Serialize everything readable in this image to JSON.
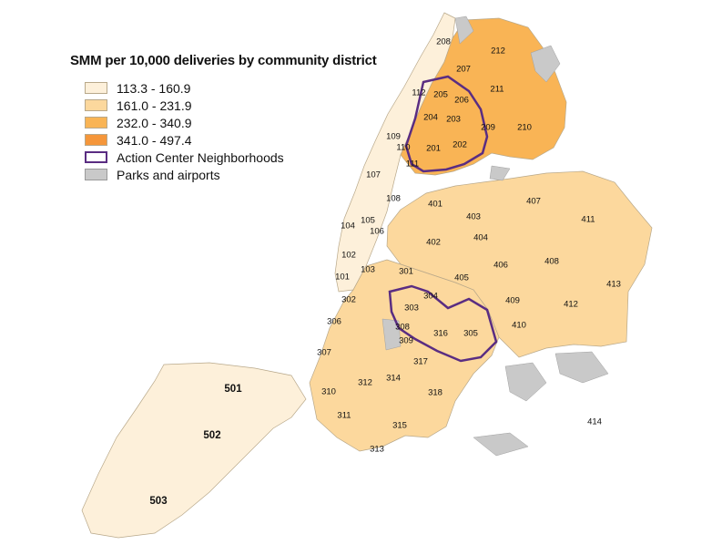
{
  "legend": {
    "title": "SMM per 10,000 deliveries by community district",
    "classes": [
      {
        "label": "113.3 - 160.9",
        "color": "#fdf0da"
      },
      {
        "label": "161.0 - 231.9",
        "color": "#fcd89d"
      },
      {
        "label": "232.0 - 340.9",
        "color": "#f9b455"
      },
      {
        "label": "341.0 - 497.4",
        "color": "#f5963a"
      }
    ],
    "action_center": {
      "label": "Action Center Neighborhoods",
      "color": "#5a2d82"
    },
    "parks": {
      "label": "Parks and airports",
      "color": "#c9c9c9"
    }
  },
  "districts": [
    {
      "id": "101",
      "class": 1
    },
    {
      "id": "102",
      "class": 1
    },
    {
      "id": "103",
      "class": 1
    },
    {
      "id": "104",
      "class": 1
    },
    {
      "id": "105",
      "class": 2
    },
    {
      "id": "106",
      "class": 1
    },
    {
      "id": "107",
      "class": 1
    },
    {
      "id": "108",
      "class": 1
    },
    {
      "id": "109",
      "class": 2
    },
    {
      "id": "110",
      "class": 3
    },
    {
      "id": "111",
      "class": 3
    },
    {
      "id": "112",
      "class": 2
    },
    {
      "id": "201",
      "class": 3
    },
    {
      "id": "202",
      "class": 3
    },
    {
      "id": "203",
      "class": 3
    },
    {
      "id": "204",
      "class": 3
    },
    {
      "id": "205",
      "class": 3
    },
    {
      "id": "206",
      "class": 3
    },
    {
      "id": "207",
      "class": 2
    },
    {
      "id": "208",
      "class": 2
    },
    {
      "id": "209",
      "class": 3
    },
    {
      "id": "210",
      "class": 3
    },
    {
      "id": "211",
      "class": 3
    },
    {
      "id": "212",
      "class": 3
    },
    {
      "id": "301",
      "class": 1
    },
    {
      "id": "302",
      "class": 2
    },
    {
      "id": "303",
      "class": 4
    },
    {
      "id": "304",
      "class": 3
    },
    {
      "id": "305",
      "class": 4
    },
    {
      "id": "306",
      "class": 2
    },
    {
      "id": "307",
      "class": 2
    },
    {
      "id": "308",
      "class": 3
    },
    {
      "id": "309",
      "class": 3
    },
    {
      "id": "310",
      "class": 2
    },
    {
      "id": "311",
      "class": 1
    },
    {
      "id": "312",
      "class": 1
    },
    {
      "id": "313",
      "class": 3
    },
    {
      "id": "314",
      "class": 3
    },
    {
      "id": "315",
      "class": 2
    },
    {
      "id": "316",
      "class": 4
    },
    {
      "id": "317",
      "class": 4
    },
    {
      "id": "318",
      "class": 4
    },
    {
      "id": "401",
      "class": 2
    },
    {
      "id": "402",
      "class": 2
    },
    {
      "id": "403",
      "class": 2
    },
    {
      "id": "404",
      "class": 2
    },
    {
      "id": "405",
      "class": 2
    },
    {
      "id": "406",
      "class": 1
    },
    {
      "id": "407",
      "class": 1
    },
    {
      "id": "408",
      "class": 2
    },
    {
      "id": "409",
      "class": 3
    },
    {
      "id": "410",
      "class": 3
    },
    {
      "id": "411",
      "class": 1
    },
    {
      "id": "412",
      "class": 3
    },
    {
      "id": "413",
      "class": 3
    },
    {
      "id": "414",
      "class": 2
    },
    {
      "id": "501",
      "class": 2
    },
    {
      "id": "502",
      "class": 1
    },
    {
      "id": "503",
      "class": 1
    }
  ]
}
